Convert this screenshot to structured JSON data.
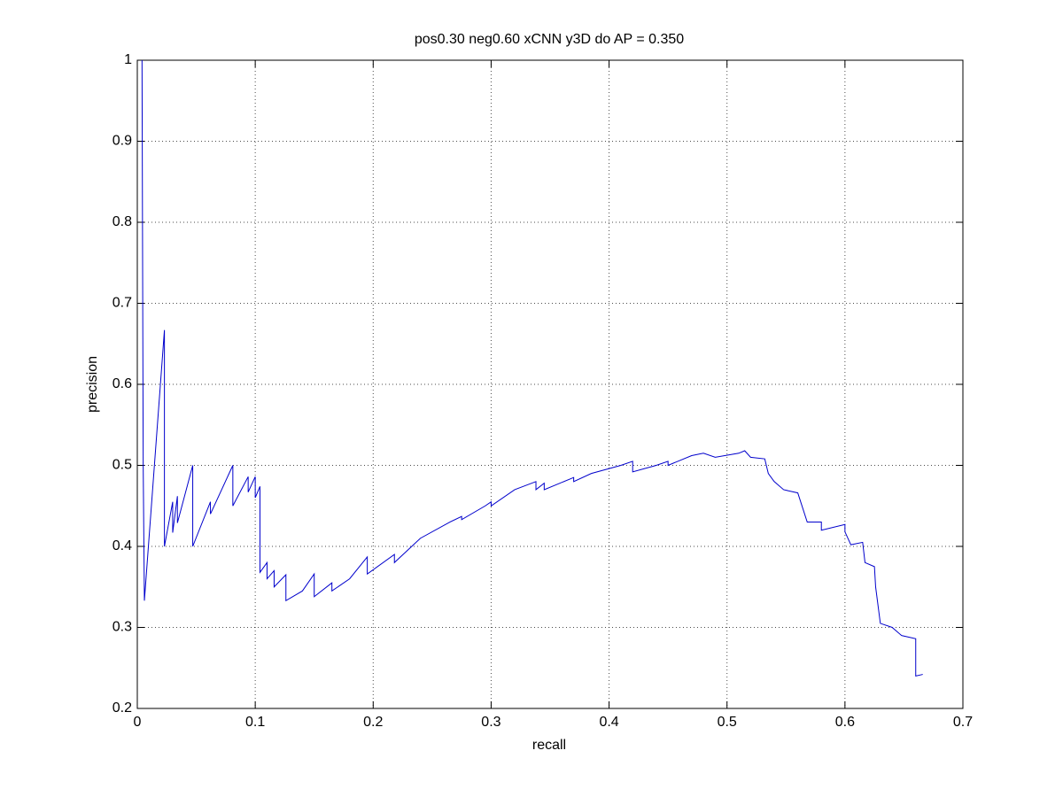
{
  "chart_data": {
    "type": "line",
    "title": "pos0.30 neg0.60 xCNN y3D do AP = 0.350",
    "x_label": "recall",
    "y_label": "precision",
    "xlim": [
      0,
      0.7
    ],
    "ylim": [
      0.2,
      1
    ],
    "xticks": [
      0,
      0.1,
      0.2,
      0.3,
      0.4,
      0.5,
      0.6,
      0.7
    ],
    "yticks": [
      0.2,
      0.3,
      0.4,
      0.5,
      0.6,
      0.7,
      0.8,
      0.9,
      1
    ],
    "grid": true,
    "series": [
      {
        "name": "precision",
        "color": "#0000cc",
        "x": [
          0.004,
          0.005,
          0.006,
          0.023,
          0.023,
          0.03,
          0.03,
          0.034,
          0.034,
          0.047,
          0.047,
          0.062,
          0.062,
          0.081,
          0.081,
          0.094,
          0.094,
          0.1,
          0.1,
          0.104,
          0.104,
          0.11,
          0.11,
          0.116,
          0.116,
          0.126,
          0.126,
          0.14,
          0.15,
          0.15,
          0.165,
          0.165,
          0.18,
          0.195,
          0.195,
          0.218,
          0.218,
          0.24,
          0.265,
          0.275,
          0.275,
          0.295,
          0.3,
          0.3,
          0.32,
          0.338,
          0.338,
          0.345,
          0.345,
          0.37,
          0.37,
          0.385,
          0.41,
          0.42,
          0.42,
          0.44,
          0.45,
          0.45,
          0.47,
          0.48,
          0.49,
          0.51,
          0.515,
          0.52,
          0.532,
          0.535,
          0.54,
          0.548,
          0.56,
          0.568,
          0.58,
          0.58,
          0.6,
          0.6,
          0.605,
          0.615,
          0.617,
          0.625,
          0.626,
          0.63,
          0.64,
          0.648,
          0.66,
          0.66,
          0.666
        ],
        "values": [
          1,
          0.5,
          0.333,
          0.667,
          0.4,
          0.455,
          0.417,
          0.462,
          0.429,
          0.5,
          0.4,
          0.455,
          0.44,
          0.5,
          0.45,
          0.486,
          0.467,
          0.486,
          0.46,
          0.474,
          0.368,
          0.38,
          0.36,
          0.37,
          0.35,
          0.365,
          0.333,
          0.345,
          0.366,
          0.338,
          0.355,
          0.345,
          0.36,
          0.387,
          0.366,
          0.39,
          0.38,
          0.41,
          0.43,
          0.437,
          0.433,
          0.45,
          0.455,
          0.45,
          0.47,
          0.48,
          0.47,
          0.478,
          0.47,
          0.485,
          0.48,
          0.49,
          0.5,
          0.505,
          0.492,
          0.5,
          0.505,
          0.5,
          0.512,
          0.515,
          0.51,
          0.515,
          0.518,
          0.51,
          0.508,
          0.49,
          0.48,
          0.47,
          0.466,
          0.43,
          0.43,
          0.42,
          0.427,
          0.418,
          0.402,
          0.405,
          0.38,
          0.375,
          0.35,
          0.305,
          0.3,
          0.29,
          0.286,
          0.24,
          0.242
        ]
      }
    ]
  }
}
